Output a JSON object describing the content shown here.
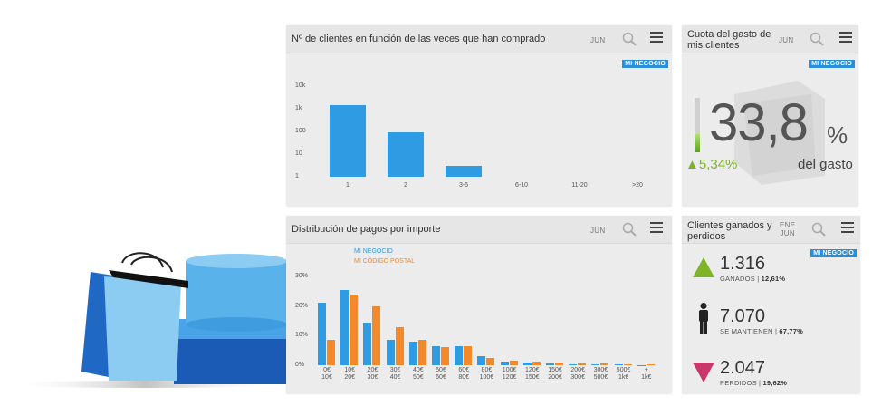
{
  "colors": {
    "blue": "#2f9be3",
    "orange": "#f2892b",
    "green": "#7eb428",
    "pink": "#c8366a",
    "badge": "#2b8fd8"
  },
  "badge_label": "MI NEGOCIO",
  "icons": {
    "search": "search-icon",
    "menu": "menu-icon"
  },
  "card1": {
    "title": "Nº de clientes en función de las veces que han comprado",
    "period": "JUN",
    "chart_data": {
      "type": "bar",
      "scale": "log",
      "y_ticks": [
        "10k",
        "1k",
        "100",
        "10",
        "1"
      ],
      "categories": [
        "1",
        "2",
        "3-5",
        "6-10",
        "11-20",
        ">20"
      ],
      "values": [
        1500,
        90,
        3,
        0,
        0,
        0
      ],
      "ylim": [
        1,
        10000
      ]
    }
  },
  "card2": {
    "title": "Cuota del gasto de mis clientes",
    "period": "JUN",
    "value": "33,8",
    "unit": "%",
    "caption": "del gasto",
    "change": "▲5,34%",
    "level": 0.338
  },
  "card3": {
    "title": "Distribución de pagos por importe",
    "period": "JUN",
    "chart_data": {
      "type": "bar",
      "y_ticks": [
        "30%",
        "20%",
        "10%",
        "0%"
      ],
      "ylim": [
        0,
        30
      ],
      "series": [
        {
          "name": "MI NEGOCIO",
          "values": [
            21,
            25.5,
            14.5,
            8.5,
            8,
            6.5,
            6.5,
            3,
            1.2,
            0.8,
            0.5,
            0.3,
            0.3,
            0.2,
            0.1
          ]
        },
        {
          "name": "MI CÓDIGO POSTAL",
          "values": [
            8.5,
            24,
            20,
            13,
            8.5,
            6,
            6.5,
            2.5,
            1.5,
            1.2,
            0.8,
            0.6,
            0.5,
            0.4,
            0.3
          ]
        }
      ],
      "categories": [
        [
          "0€",
          "10€"
        ],
        [
          "10€",
          "20€"
        ],
        [
          "20€",
          "30€"
        ],
        [
          "30€",
          "40€"
        ],
        [
          "40€",
          "50€"
        ],
        [
          "50€",
          "60€"
        ],
        [
          "60€",
          "80€"
        ],
        [
          "80€",
          "100€"
        ],
        [
          "100€",
          "120€"
        ],
        [
          "120€",
          "150€"
        ],
        [
          "150€",
          "200€"
        ],
        [
          "200€",
          "300€"
        ],
        [
          "300€",
          "500€"
        ],
        [
          "500€",
          "1k€"
        ],
        [
          "+",
          "1k€"
        ]
      ]
    }
  },
  "card4": {
    "title": "Clientes ganados y perdidos",
    "period": [
      "ENE",
      "JUN"
    ],
    "won": {
      "value": "1.316",
      "label": "GANADOS | ",
      "pct": "12,61%"
    },
    "kept": {
      "value": "7.070",
      "label": "SE MANTIENEN | ",
      "pct": "67,77%"
    },
    "lost": {
      "value": "2.047",
      "label": "PERDIDOS | ",
      "pct": "19,62%"
    }
  }
}
